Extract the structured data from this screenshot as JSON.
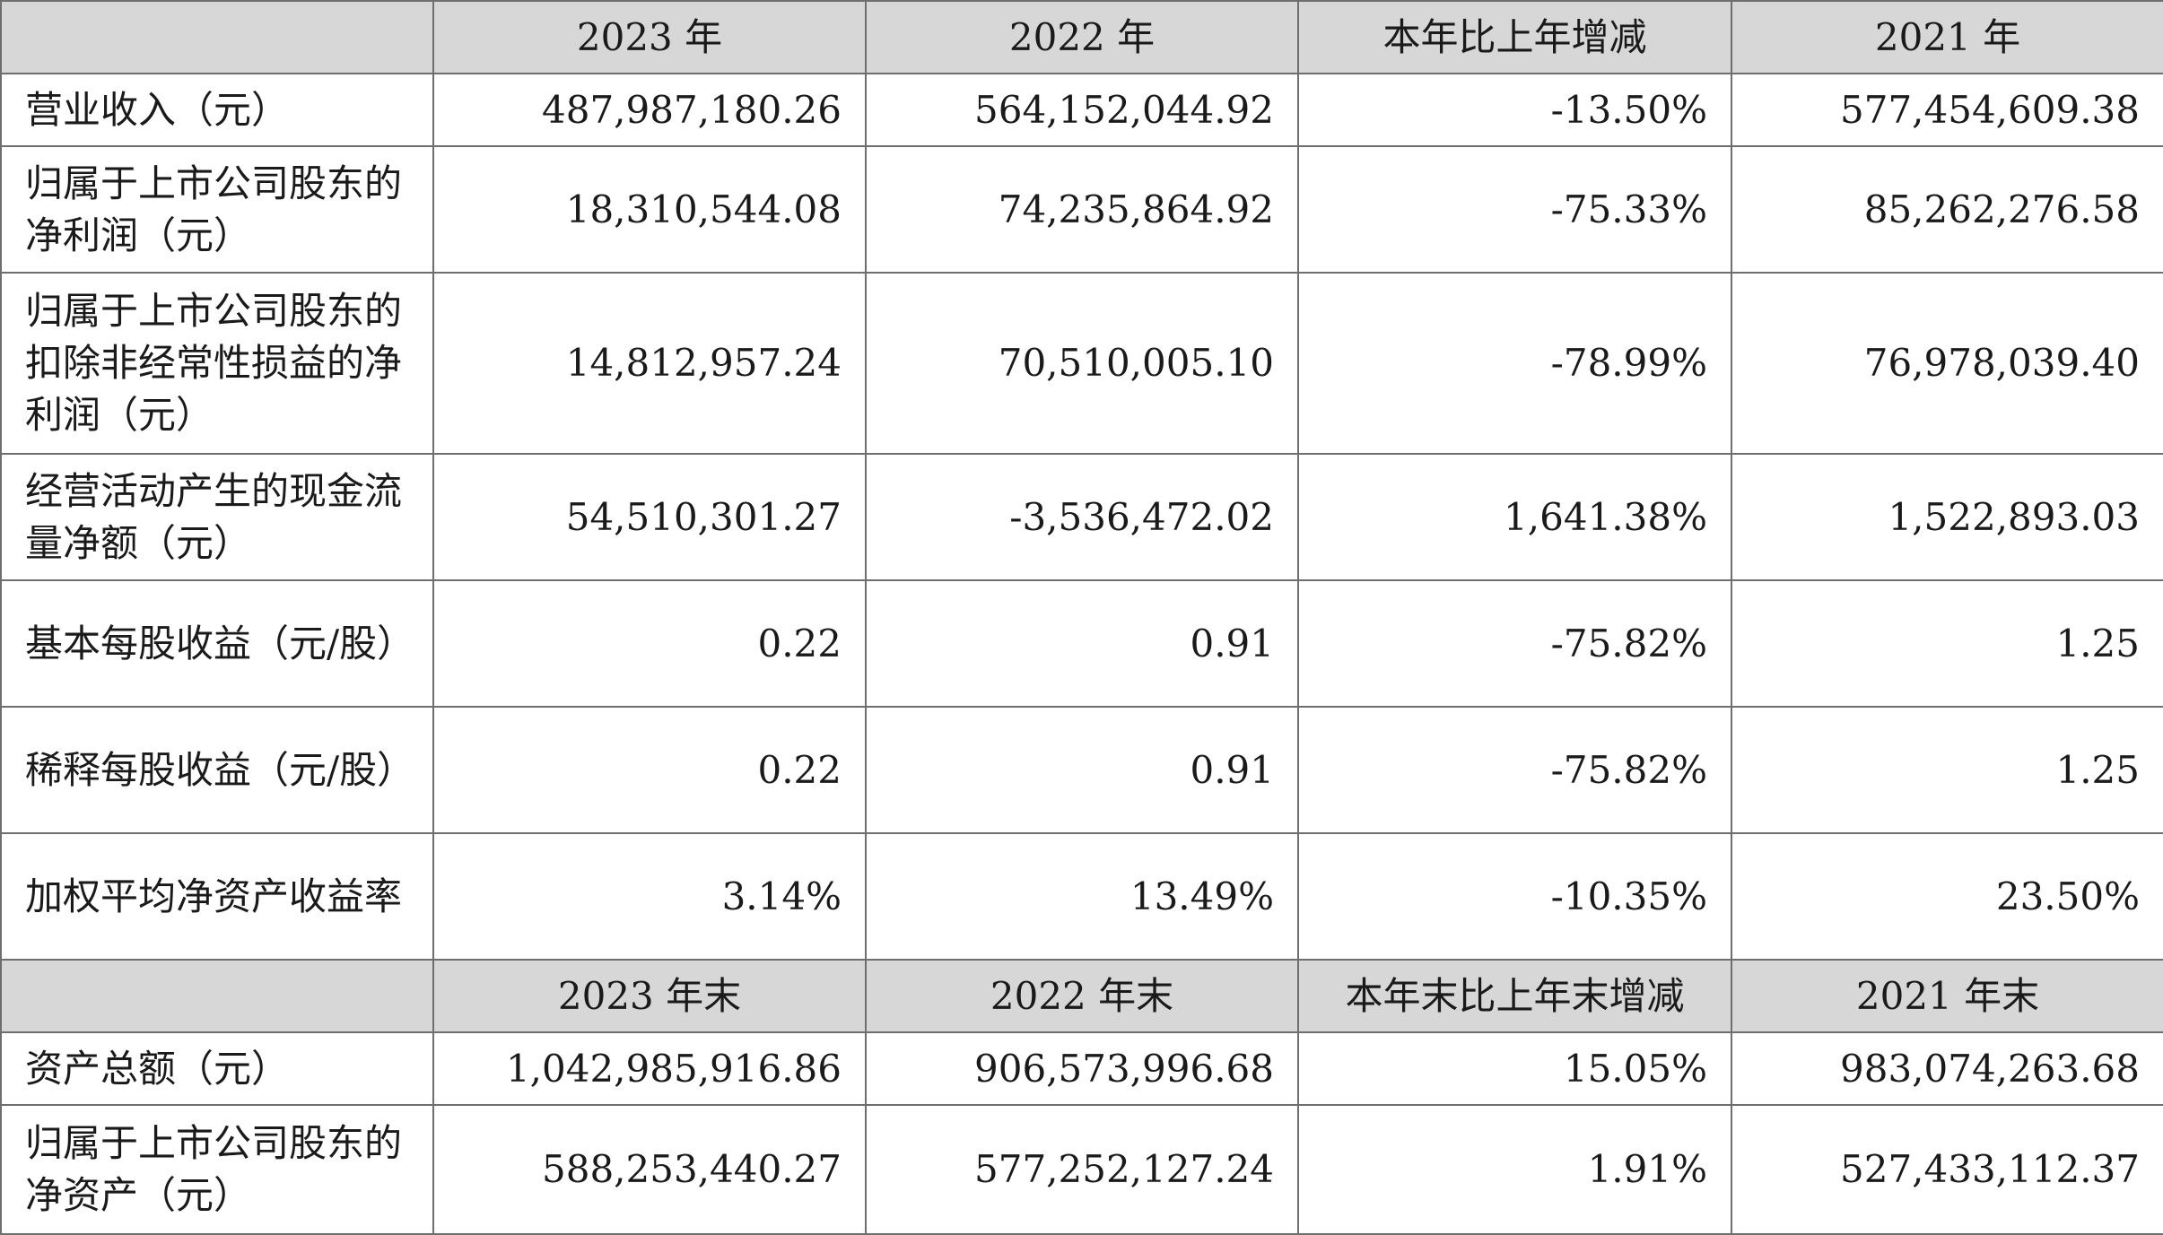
{
  "section1": {
    "headers": [
      "",
      "2023 年",
      "2022 年",
      "本年比上年增减",
      "2021 年"
    ],
    "rows": [
      {
        "label": "营业收入（元）",
        "values": [
          "487,987,180.26",
          "564,152,044.92",
          "-13.50%",
          "577,454,609.38"
        ]
      },
      {
        "label": "归属于上市公司股东的净利润（元）",
        "values": [
          "18,310,544.08",
          "74,235,864.92",
          "-75.33%",
          "85,262,276.58"
        ]
      },
      {
        "label": "归属于上市公司股东的扣除非经常性损益的净利润（元）",
        "values": [
          "14,812,957.24",
          "70,510,005.10",
          "-78.99%",
          "76,978,039.40"
        ]
      },
      {
        "label": "经营活动产生的现金流量净额（元）",
        "values": [
          "54,510,301.27",
          "-3,536,472.02",
          "1,641.38%",
          "1,522,893.03"
        ]
      },
      {
        "label": "基本每股收益（元/股）",
        "values": [
          "0.22",
          "0.91",
          "-75.82%",
          "1.25"
        ]
      },
      {
        "label": "稀释每股收益（元/股）",
        "values": [
          "0.22",
          "0.91",
          "-75.82%",
          "1.25"
        ]
      },
      {
        "label": "加权平均净资产收益率",
        "values": [
          "3.14%",
          "13.49%",
          "-10.35%",
          "23.50%"
        ]
      }
    ]
  },
  "section2": {
    "headers": [
      "",
      "2023 年末",
      "2022 年末",
      "本年末比上年末增减",
      "2021 年末"
    ],
    "rows": [
      {
        "label": "资产总额（元）",
        "values": [
          "1,042,985,916.86",
          "906,573,996.68",
          "15.05%",
          "983,074,263.68"
        ]
      },
      {
        "label": "归属于上市公司股东的净资产（元）",
        "values": [
          "588,253,440.27",
          "577,252,127.24",
          "1.91%",
          "527,433,112.37"
        ]
      }
    ]
  }
}
